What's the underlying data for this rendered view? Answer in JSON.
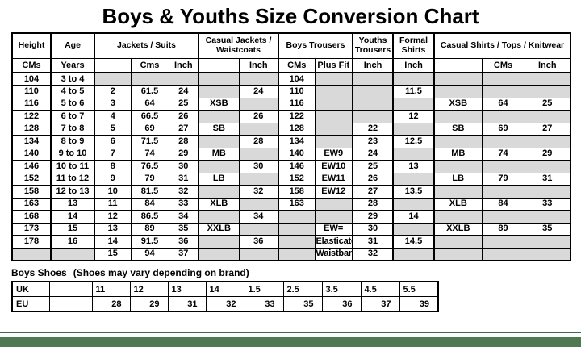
{
  "title": "Boys & Youths Size Conversion Chart",
  "colors": {
    "empty_cell": "#d9d9d9",
    "border": "#000000",
    "footer_bar_green": "#4f7a51",
    "footer_line_green": "#3f6b42"
  },
  "main_table": {
    "groups": [
      {
        "label": "Height",
        "span": 1
      },
      {
        "label": "Age",
        "span": 1
      },
      {
        "label": "Jackets / Suits",
        "span": 3
      },
      {
        "label": "Casual Jackets / Waistcoats",
        "span": 2
      },
      {
        "label": "Boys Trousers",
        "span": 2
      },
      {
        "label": "Youths Trousers",
        "span": 1
      },
      {
        "label": "Formal Shirts",
        "span": 1
      },
      {
        "label": "Casual Shirts / Tops / Knitwear",
        "span": 3
      }
    ],
    "subheaders": [
      "CMs",
      "Years",
      "",
      "Cms",
      "Inch",
      "",
      "Inch",
      "CMs",
      "Plus Fit",
      "Inch",
      "Inch",
      "",
      "CMs",
      "Inch"
    ],
    "rows": [
      [
        "104",
        "3 to 4",
        "",
        "",
        "",
        "",
        "",
        "104",
        "",
        "",
        "",
        "",
        "",
        ""
      ],
      [
        "110",
        "4 to 5",
        "2",
        "61.5",
        "24",
        "",
        "24",
        "110",
        "",
        "",
        "11.5",
        "",
        "",
        ""
      ],
      [
        "116",
        "5 to 6",
        "3",
        "64",
        "25",
        "XSB",
        "",
        "116",
        "",
        "",
        "",
        "XSB",
        "64",
        "25"
      ],
      [
        "122",
        "6 to 7",
        "4",
        "66.5",
        "26",
        "",
        "26",
        "122",
        "",
        "",
        "12",
        "",
        "",
        ""
      ],
      [
        "128",
        "7 to 8",
        "5",
        "69",
        "27",
        "SB",
        "",
        "128",
        "",
        "22",
        "",
        "SB",
        "69",
        "27"
      ],
      [
        "134",
        "8 to 9",
        "6",
        "71.5",
        "28",
        "",
        "28",
        "134",
        "",
        "23",
        "12.5",
        "",
        "",
        ""
      ],
      [
        "140",
        "9 to 10",
        "7",
        "74",
        "29",
        "MB",
        "",
        "140",
        "EW9",
        "24",
        "",
        "MB",
        "74",
        "29"
      ],
      [
        "146",
        "10 to 11",
        "8",
        "76.5",
        "30",
        "",
        "30",
        "146",
        "EW10",
        "25",
        "13",
        "",
        "",
        ""
      ],
      [
        "152",
        "11 to 12",
        "9",
        "79",
        "31",
        "LB",
        "",
        "152",
        "EW11",
        "26",
        "",
        "LB",
        "79",
        "31"
      ],
      [
        "158",
        "12 to 13",
        "10",
        "81.5",
        "32",
        "",
        "32",
        "158",
        "EW12",
        "27",
        "13.5",
        "",
        "",
        ""
      ],
      [
        "163",
        "13",
        "11",
        "84",
        "33",
        "XLB",
        "",
        "163",
        "",
        "28",
        "",
        "XLB",
        "84",
        "33"
      ],
      [
        "168",
        "14",
        "12",
        "86.5",
        "34",
        "",
        "34",
        "",
        "",
        "29",
        "14",
        "",
        "",
        ""
      ],
      [
        "173",
        "15",
        "13",
        "89",
        "35",
        "XXLB",
        "",
        "",
        "EW=",
        "30",
        "",
        "XXLB",
        "89",
        "35"
      ],
      [
        "178",
        "16",
        "14",
        "91.5",
        "36",
        "",
        "36",
        "",
        "Elasticated",
        "31",
        "14.5",
        "",
        "",
        ""
      ],
      [
        "",
        "",
        "15",
        "94",
        "37",
        "",
        "",
        "",
        "Waistband",
        "32",
        "",
        "",
        "",
        ""
      ]
    ]
  },
  "shoes_section": {
    "title": "Boys Shoes",
    "note": "(Shoes may vary depending on brand)",
    "rows": [
      {
        "label": "UK",
        "values": [
          "11",
          "12",
          "13",
          "14",
          "1.5",
          "2.5",
          "3.5",
          "4.5",
          "5.5"
        ]
      },
      {
        "label": "EU",
        "values": [
          "28",
          "29",
          "31",
          "32",
          "33",
          "35",
          "36",
          "37",
          "39"
        ]
      }
    ]
  }
}
